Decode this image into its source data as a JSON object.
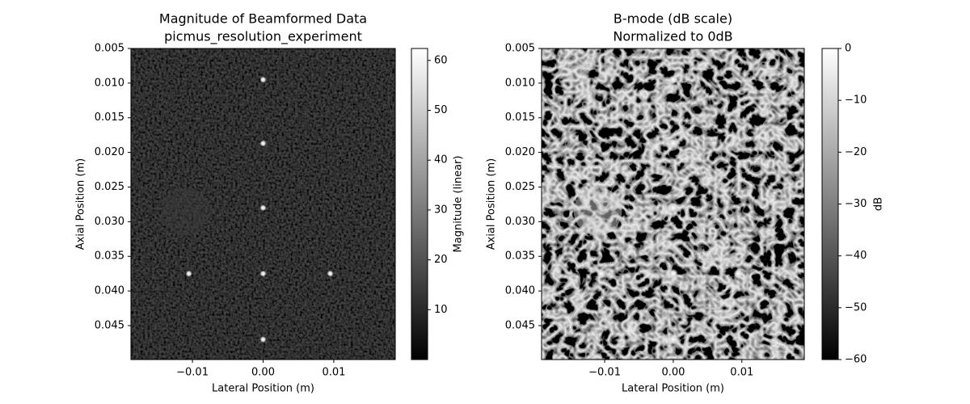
{
  "chart_data": [
    {
      "type": "image",
      "colormap": "gray",
      "brightness": "dark",
      "title": "Magnitude of Beamformed Data",
      "subtitle": "picmus_resolution_experiment",
      "x_label": "Lateral Position (m)",
      "y_label": "Axial Position (m)",
      "xlim": [
        -0.0187,
        0.0187
      ],
      "ylim": [
        0.0499,
        0.005
      ],
      "y_inverted": true,
      "xticks": [
        {
          "value": -0.01,
          "label": "−0.01"
        },
        {
          "value": 0,
          "label": "0.00"
        },
        0.01
      ],
      "yticks": [
        0.005,
        {
          "value": 0.01,
          "label": "0.010"
        },
        0.015,
        {
          "value": 0.02,
          "label": "0.020"
        },
        0.025,
        {
          "value": 0.03,
          "label": "0.030"
        },
        0.035,
        {
          "value": 0.04,
          "label": "0.040"
        },
        0.045
      ],
      "targets": {
        "x": [
          0.0,
          0.0,
          0.0,
          -0.0105,
          0.0,
          0.0095,
          0.0
        ],
        "y": [
          0.0095,
          0.0187,
          0.028,
          0.0375,
          0.0375,
          0.0375,
          0.047
        ]
      },
      "cyst": {
        "x": -0.011,
        "y": 0.0285,
        "r": 0.0035
      },
      "colorbar": {
        "label": "Magnitude (linear)",
        "clim": [
          0,
          62.4
        ],
        "ticks": [
          10,
          20,
          30,
          40,
          50,
          60
        ]
      }
    },
    {
      "type": "image",
      "colormap": "gray",
      "brightness": "speckle",
      "title": "B-mode (dB scale)",
      "subtitle": "Normalized to 0dB",
      "x_label": "Lateral Position (m)",
      "y_label": "Axial Position (m)",
      "xlim": [
        -0.0192,
        0.0191
      ],
      "ylim": [
        0.0499,
        0.005
      ],
      "y_inverted": true,
      "xticks": [
        {
          "value": -0.01,
          "label": "−0.01"
        },
        {
          "value": 0,
          "label": "0.00"
        },
        0.01
      ],
      "yticks": [
        0.005,
        {
          "value": 0.01,
          "label": "0.010"
        },
        0.015,
        {
          "value": 0.02,
          "label": "0.020"
        },
        0.025,
        {
          "value": 0.03,
          "label": "0.030"
        },
        0.035,
        {
          "value": 0.04,
          "label": "0.040"
        },
        0.045
      ],
      "targets": {
        "x": [
          0.0,
          0.0,
          0.0,
          -0.0105,
          0.0,
          0.0095,
          0.0
        ],
        "y": [
          0.0095,
          0.0187,
          0.028,
          0.0375,
          0.0375,
          0.0375,
          0.047
        ]
      },
      "cyst": {
        "x": -0.011,
        "y": 0.0285,
        "r": 0.0035
      },
      "colorbar": {
        "label": "dB",
        "clim": [
          -60,
          0
        ],
        "ticks": [
          0,
          {
            "value": -10,
            "label": "−10"
          },
          {
            "value": -20,
            "label": "−20"
          },
          {
            "value": -30,
            "label": "−30"
          },
          {
            "value": -40,
            "label": "−40"
          },
          {
            "value": -50,
            "label": "−50"
          },
          {
            "value": -60,
            "label": "−60"
          }
        ]
      }
    }
  ]
}
